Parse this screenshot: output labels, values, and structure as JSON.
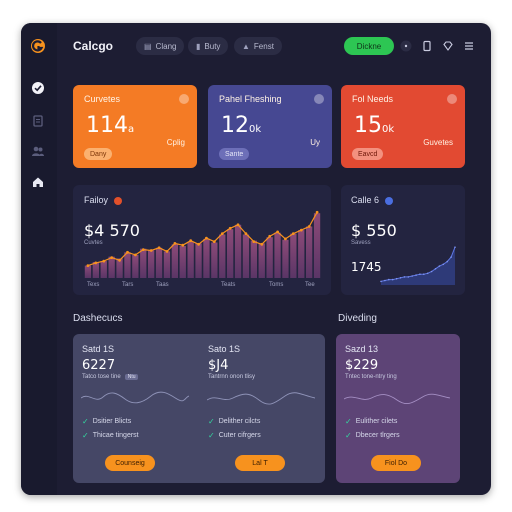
{
  "brand": {
    "name": "Calcgo"
  },
  "topbar": {
    "pills": [
      {
        "icon": "grid-icon",
        "label": "Clang"
      },
      {
        "icon": "bookmark-icon",
        "label": "Buty"
      },
      {
        "icon": "user-icon",
        "label": "Fenst"
      }
    ],
    "cta_label": "Dickne",
    "icons": [
      "more-icon",
      "mobile-icon",
      "diamond-icon",
      "menu-icon"
    ]
  },
  "sidebar": {
    "items": [
      {
        "name": "sidebar-item-check",
        "icon": "check-circle-icon",
        "active": true
      },
      {
        "name": "sidebar-item-docs",
        "icon": "document-icon",
        "active": false
      },
      {
        "name": "sidebar-item-users",
        "icon": "users-icon",
        "active": false
      },
      {
        "name": "sidebar-item-home",
        "icon": "home-icon",
        "active": false
      }
    ]
  },
  "kpis": [
    {
      "title": "Curvetes",
      "value": "114",
      "unit": "a",
      "side": "Cplig",
      "badge": "Dany",
      "color": "#f47b25"
    },
    {
      "title": "Pahel Fheshing",
      "value": "12",
      "unit": "0k",
      "side": "Uy",
      "badge": "Sante",
      "color": "#464892"
    },
    {
      "title": "Fol Needs",
      "value": "15",
      "unit": "0k",
      "side": "Guvetes",
      "badge": "Eavcd",
      "color": "#e24a32"
    }
  ],
  "panels": {
    "left": {
      "title": "Failoy",
      "value": "$4 570",
      "sub": "Cuvtes",
      "x_labels": [
        "Texs",
        "Tars",
        "Taas",
        "Teats",
        "Toms",
        "Tee"
      ]
    },
    "right": {
      "title": "Calle 6",
      "value": "$ 550",
      "sub": "Savess",
      "secondary": "1745"
    }
  },
  "sections": {
    "left": "Dashecucs",
    "right": "Diveding"
  },
  "plans": [
    {
      "name": "Satd 1S",
      "price": "6227",
      "note": "Tatco tose tine",
      "tag": "Ntu",
      "features": [
        "Dsitier Blicts",
        "Thicae tingerst"
      ],
      "button": "Counseig"
    },
    {
      "name": "Sato 1S",
      "price": "$J4",
      "note": "Tantrnn onon tlisy",
      "tag": "",
      "features": [
        "Delither cilcts",
        "Cuter cifrgers"
      ],
      "button": "Lal T"
    },
    {
      "name": "Sazd 13",
      "price": "$229",
      "note": "Tntec tone-ntry ting",
      "tag": "",
      "features": [
        "Eulither cilets",
        "Dbecer tlrgers"
      ],
      "button": "Fiol Do"
    }
  ],
  "colors": {
    "accent_green": "#2dc653",
    "accent_orange": "#f7921e",
    "panel_bg": "#232440",
    "check_teal": "#33d69f"
  },
  "chart_data": [
    {
      "type": "bar",
      "title": "Failoy",
      "categories": [
        "1",
        "2",
        "3",
        "4",
        "5",
        "6",
        "7",
        "8",
        "9",
        "10",
        "11",
        "12",
        "13",
        "14",
        "15",
        "16",
        "17",
        "18",
        "19",
        "20",
        "21",
        "22",
        "23",
        "24",
        "25",
        "26",
        "27",
        "28",
        "29",
        "30"
      ],
      "series": [
        {
          "values": [
            14,
            18,
            19,
            24,
            22,
            29,
            26,
            33,
            31,
            34,
            30,
            38,
            36,
            41,
            39,
            44,
            40,
            49,
            55,
            60,
            49,
            42,
            39,
            46,
            51,
            43,
            50,
            54,
            58,
            73
          ]
        }
      ],
      "overlay_line": [
        14,
        17,
        19,
        23,
        20,
        29,
        26,
        32,
        31,
        34,
        30,
        39,
        37,
        42,
        38,
        45,
        41,
        50,
        56,
        60,
        50,
        41,
        38,
        47,
        52,
        44,
        50,
        54,
        58,
        74
      ],
      "ylim": [
        0,
        80
      ]
    },
    {
      "type": "area",
      "title": "Calle 6",
      "x": [
        1,
        2,
        3,
        4,
        5,
        6,
        7,
        8,
        9,
        10,
        11,
        12,
        13,
        14,
        15,
        16,
        17,
        18,
        19,
        20
      ],
      "series": [
        {
          "values": [
            4,
            5,
            6,
            6,
            7,
            8,
            9,
            9,
            10,
            11,
            12,
            12,
            13,
            15,
            18,
            21,
            23,
            26,
            31,
            42
          ]
        }
      ],
      "ylim": [
        0,
        50
      ]
    }
  ]
}
